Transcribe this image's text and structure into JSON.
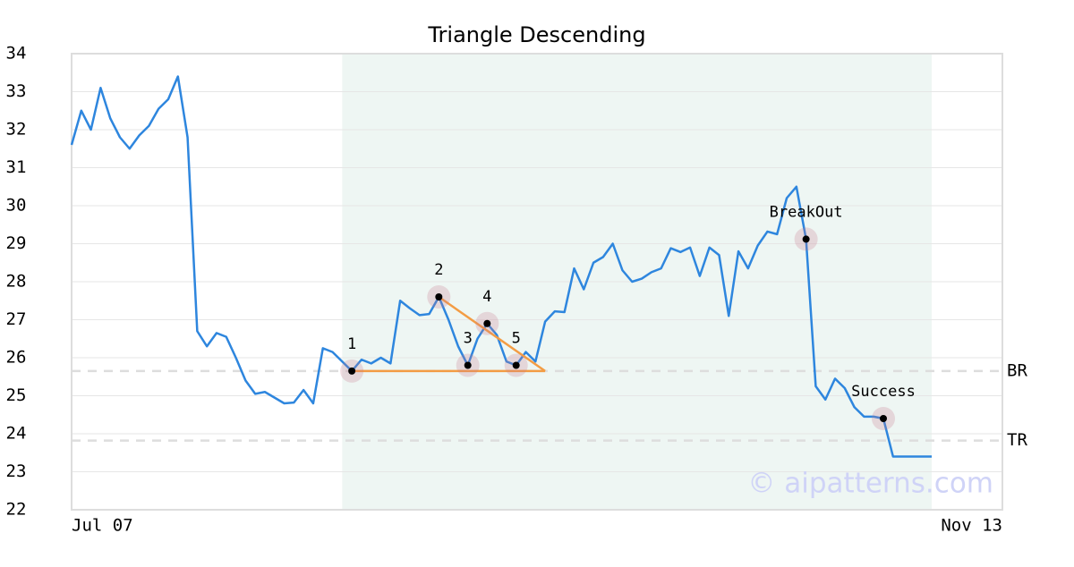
{
  "chart_data": {
    "type": "line",
    "title": "Triangle Descending",
    "categories": [
      "Jul 07",
      null,
      null,
      null,
      null,
      null,
      null,
      null,
      null,
      null,
      null,
      null,
      null,
      null,
      null,
      null,
      null,
      null,
      null,
      null,
      null,
      null,
      null,
      null,
      null,
      null,
      null,
      null,
      null,
      null,
      null,
      null,
      null,
      null,
      null,
      null,
      null,
      null,
      null,
      null,
      null,
      null,
      null,
      null,
      null,
      null,
      null,
      null,
      null,
      null,
      null,
      null,
      null,
      null,
      null,
      null,
      null,
      null,
      null,
      null,
      null,
      null,
      null,
      null,
      null,
      null,
      null,
      null,
      null,
      null,
      null,
      null,
      null,
      null,
      null,
      null,
      null,
      null,
      null,
      null,
      null,
      null,
      null,
      null,
      null,
      null,
      null,
      null,
      null,
      "Nov 13"
    ],
    "series": [
      {
        "color": "#2e86de",
        "values": [
          31.6,
          32.5,
          32.0,
          33.1,
          32.3,
          31.8,
          31.5,
          31.85,
          32.1,
          32.55,
          32.8,
          33.4,
          31.8,
          26.7,
          26.3,
          26.65,
          26.55,
          26.0,
          25.4,
          25.05,
          25.1,
          24.95,
          24.8,
          24.82,
          25.15,
          24.8,
          26.25,
          26.15,
          25.9,
          25.65,
          25.95,
          25.85,
          26.0,
          25.85,
          27.5,
          27.3,
          27.12,
          27.15,
          27.6,
          27.0,
          26.3,
          25.8,
          26.5,
          26.9,
          26.6,
          25.9,
          25.8,
          26.15,
          25.9,
          26.95,
          27.22,
          27.2,
          28.35,
          27.8,
          28.5,
          28.65,
          29.0,
          28.3,
          28.0,
          28.08,
          28.25,
          28.35,
          28.88,
          28.78,
          28.9,
          28.15,
          28.9,
          28.7,
          27.1,
          28.8,
          28.35,
          28.95,
          29.32,
          29.25,
          30.2,
          30.5,
          29.12,
          25.25,
          24.9,
          25.45,
          25.2,
          24.7,
          24.45,
          24.45,
          24.4,
          23.4,
          23.4,
          23.4,
          23.4,
          23.4
        ]
      }
    ],
    "ylim": [
      22,
      34
    ],
    "yticks": [
      22,
      23,
      24,
      25,
      26,
      27,
      28,
      29,
      30,
      31,
      32,
      33,
      34
    ],
    "grid": true,
    "shaded_region": {
      "from": 28,
      "to": 89,
      "color": "#eef6f3"
    },
    "markers": [
      {
        "label": "1",
        "index": 29,
        "value": 25.65
      },
      {
        "label": "2",
        "index": 38,
        "value": 27.6
      },
      {
        "label": "3",
        "index": 41,
        "value": 25.8
      },
      {
        "label": "4",
        "index": 43,
        "value": 26.9
      },
      {
        "label": "5",
        "index": 46,
        "value": 25.8
      },
      {
        "label": "BreakOut",
        "index": 76,
        "value": 29.12
      },
      {
        "label": "Success",
        "index": 84,
        "value": 24.4
      }
    ],
    "pattern_lines": {
      "color": "#f39c44",
      "segments": [
        {
          "x": [
            29,
            49
          ],
          "y": [
            25.65,
            25.65
          ]
        },
        {
          "x": [
            38,
            49
          ],
          "y": [
            27.6,
            25.65
          ]
        }
      ]
    },
    "reference_lines": [
      {
        "label": "BR",
        "value": 25.65
      },
      {
        "label": "TR",
        "value": 23.82
      }
    ],
    "watermark": "© aipatterns.com"
  }
}
